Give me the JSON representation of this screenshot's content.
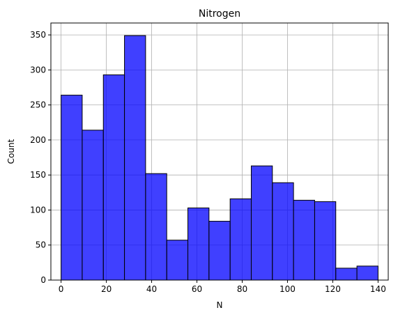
{
  "chart_data": {
    "type": "bar",
    "title": "Nitrogen",
    "xlabel": "N",
    "ylabel": "Count",
    "bin_edges": [
      0,
      9.33,
      18.67,
      28,
      37.33,
      46.67,
      56,
      65.33,
      74.67,
      84,
      93.33,
      102.67,
      112,
      121.33,
      130.67,
      140
    ],
    "values": [
      264,
      214,
      293,
      349,
      152,
      57,
      103,
      84,
      116,
      163,
      139,
      114,
      112,
      17,
      20
    ],
    "xlim": [
      -4.5,
      144.5
    ],
    "ylim": [
      0,
      367
    ],
    "x_ticks": [
      0,
      20,
      40,
      60,
      80,
      100,
      120,
      140
    ],
    "y_ticks": [
      0,
      50,
      100,
      150,
      200,
      250,
      300,
      350
    ],
    "grid": true,
    "bar_color": "#0000ff",
    "bar_opacity": 0.75,
    "edge_color": "#000000"
  }
}
